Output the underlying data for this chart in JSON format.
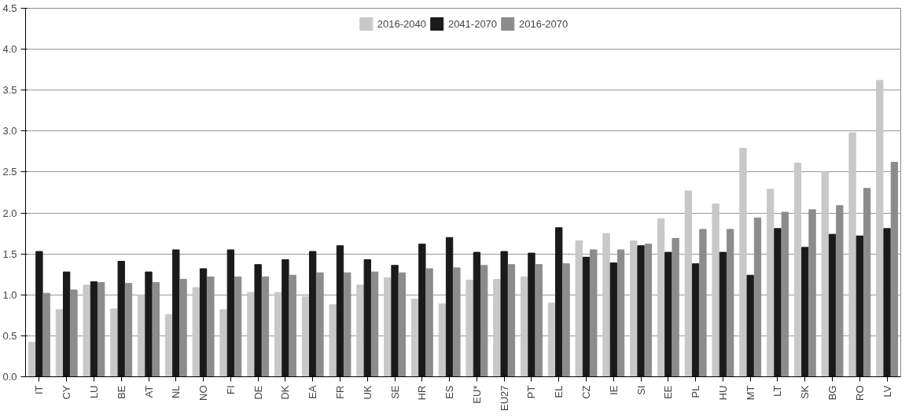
{
  "chart_data": {
    "type": "bar",
    "categories": [
      "IT",
      "CY",
      "LU",
      "BE",
      "AT",
      "NL",
      "NO",
      "FI",
      "DE",
      "DK",
      "EA",
      "FR",
      "UK",
      "SE",
      "HR",
      "ES",
      "EU*",
      "EU27",
      "PT",
      "EL",
      "CZ",
      "IE",
      "SI",
      "EE",
      "PL",
      "HU",
      "MT",
      "LT",
      "SK",
      "BG",
      "RO",
      "LV"
    ],
    "series": [
      {
        "name": "2016-2040",
        "color": "#c8c8c8",
        "values": [
          0.42,
          0.82,
          1.12,
          0.83,
          1.0,
          0.76,
          1.09,
          0.82,
          1.03,
          1.03,
          0.98,
          0.88,
          1.12,
          1.21,
          0.95,
          0.89,
          1.18,
          1.19,
          1.22,
          0.9,
          1.66,
          1.75,
          1.66,
          1.93,
          2.27,
          2.11,
          2.79,
          2.29,
          2.61,
          2.5,
          2.98,
          3.62
        ]
      },
      {
        "name": "2041-2070",
        "color": "#1a1a1a",
        "values": [
          1.53,
          1.28,
          1.16,
          1.41,
          1.28,
          1.55,
          1.32,
          1.55,
          1.37,
          1.43,
          1.53,
          1.6,
          1.43,
          1.36,
          1.62,
          1.7,
          1.52,
          1.53,
          1.51,
          1.82,
          1.46,
          1.39,
          1.6,
          1.52,
          1.38,
          1.52,
          1.24,
          1.81,
          1.58,
          1.74,
          1.72,
          1.81
        ]
      },
      {
        "name": "2016-2070",
        "color": "#8c8c8c",
        "values": [
          1.02,
          1.06,
          1.15,
          1.14,
          1.15,
          1.19,
          1.22,
          1.22,
          1.22,
          1.24,
          1.27,
          1.27,
          1.28,
          1.27,
          1.32,
          1.33,
          1.36,
          1.37,
          1.37,
          1.38,
          1.55,
          1.55,
          1.62,
          1.69,
          1.8,
          1.8,
          1.94,
          2.01,
          2.04,
          2.09,
          2.3,
          2.62
        ]
      }
    ],
    "ylim": [
      0,
      4.5
    ],
    "yticks": [
      {
        "value": 0,
        "label": "0.0"
      },
      0.5,
      {
        "value": 1,
        "label": "1.0"
      },
      1.5,
      {
        "value": 2,
        "label": "2.0"
      },
      2.5,
      {
        "value": 3,
        "label": "3.0"
      },
      3.5,
      {
        "value": 4,
        "label": "4.0"
      },
      4.5
    ],
    "grid": "y",
    "legend": "top"
  }
}
